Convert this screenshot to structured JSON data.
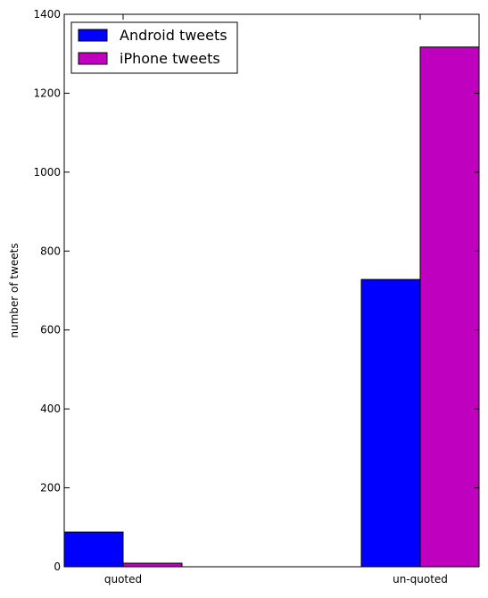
{
  "chart_data": {
    "type": "bar",
    "title": "",
    "xlabel": "",
    "ylabel": "number of tweets",
    "categories": [
      "quoted",
      "un-quoted"
    ],
    "series": [
      {
        "name": "Android tweets",
        "values": [
          88,
          728
        ],
        "color": "#0000ff"
      },
      {
        "name": "iPhone tweets",
        "values": [
          9,
          1317
        ],
        "color": "#bf00bf"
      }
    ],
    "ylim": [
      0,
      1400
    ],
    "yticks": [
      0,
      200,
      400,
      600,
      800,
      1000,
      1200,
      1400
    ],
    "grid": false,
    "legend_position": "top-left"
  }
}
